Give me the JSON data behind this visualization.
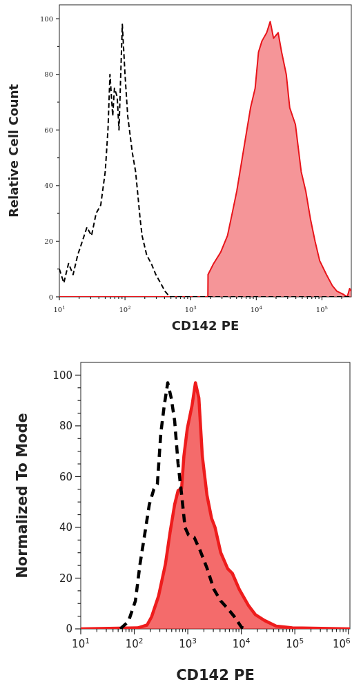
{
  "chart_data": [
    {
      "type": "area",
      "xlabel": "CD142 PE",
      "ylabel": "Relative Cell Count",
      "log": "x",
      "grid": false,
      "xlim": [
        10,
        280000
      ],
      "ylim": [
        0,
        105
      ],
      "xticks": [
        {
          "value": 10,
          "label": "10$^{1}$"
        },
        {
          "value": 20,
          "label": null
        },
        {
          "value": 30,
          "label": null
        },
        {
          "value": 40,
          "label": null
        },
        {
          "value": 50,
          "label": null
        },
        {
          "value": 60,
          "label": null
        },
        {
          "value": 70,
          "label": null
        },
        {
          "value": 80,
          "label": null
        },
        {
          "value": 90,
          "label": null
        },
        {
          "value": 100,
          "label": "10$^{2}$"
        },
        {
          "value": 200,
          "label": null
        },
        {
          "value": 300,
          "label": null
        },
        {
          "value": 400,
          "label": null
        },
        {
          "value": 500,
          "label": null
        },
        {
          "value": 600,
          "label": null
        },
        {
          "value": 700,
          "label": null
        },
        {
          "value": 800,
          "label": null
        },
        {
          "value": 900,
          "label": null
        },
        {
          "value": 1000,
          "label": "10$^{3}$"
        },
        {
          "value": 2000,
          "label": null
        },
        {
          "value": 3000,
          "label": null
        },
        {
          "value": 4000,
          "label": null
        },
        {
          "value": 5000,
          "label": null
        },
        {
          "value": 6000,
          "label": null
        },
        {
          "value": 7000,
          "label": null
        },
        {
          "value": 8000,
          "label": null
        },
        {
          "value": 9000,
          "label": null
        },
        {
          "value": 10000,
          "label": "10$^{4}$"
        },
        {
          "value": 20000,
          "label": null
        },
        {
          "value": 30000,
          "label": null
        },
        {
          "value": 40000,
          "label": null
        },
        {
          "value": 50000,
          "label": null
        },
        {
          "value": 60000,
          "label": null
        },
        {
          "value": 70000,
          "label": null
        },
        {
          "value": 80000,
          "label": null
        },
        {
          "value": 90000,
          "label": null
        },
        {
          "value": 100000,
          "label": "10$^{5}$"
        },
        {
          "value": 200000,
          "label": null
        }
      ],
      "yticks": [
        0,
        {
          "value": 10,
          "label": null
        },
        20,
        {
          "value": 30,
          "label": null
        },
        40,
        {
          "value": 50,
          "label": null
        },
        60,
        {
          "value": 70,
          "label": null
        },
        80,
        {
          "value": 90,
          "label": null
        },
        100
      ],
      "series": [
        {
          "color": "#e8141a",
          "line_style": "solid",
          "x": [
            10,
            1830,
            1840,
            2240,
            2860,
            3640,
            4290,
            5040,
            5920,
            6950,
            8170,
            9600,
            10800,
            12200,
            14400,
            16300,
            18300,
            21500,
            24300,
            28600,
            32300,
            39400,
            48300,
            56700,
            66800,
            78500,
            92300,
            117000,
            144000,
            169000,
            207000,
            243000,
            264000,
            280000
          ],
          "values": [
            0,
            0,
            8,
            12,
            16,
            22,
            30,
            38,
            48,
            58,
            68,
            75,
            88,
            92,
            95,
            99,
            93,
            95,
            88,
            80,
            68,
            62,
            45,
            38,
            28,
            20,
            13,
            8,
            4,
            2,
            1,
            0,
            3,
            2
          ]
        },
        {
          "type": "line",
          "color": "#000000",
          "line_style": "dashed",
          "x": [
            10,
            11.7,
            13.8,
            16.2,
            19,
            22.4,
            26.3,
            30.9,
            36.3,
            42.7,
            50,
            55,
            59,
            65,
            69,
            76,
            81,
            91,
            100,
            110,
            117,
            129,
            145,
            155,
            170,
            182,
            214,
            251,
            295,
            347,
            407,
            479,
            280000
          ],
          "values": [
            10,
            5,
            12,
            8,
            15,
            20,
            25,
            22,
            30,
            33,
            45,
            60,
            80,
            65,
            75,
            72,
            60,
            98,
            80,
            65,
            60,
            52,
            45,
            38,
            28,
            22,
            15,
            12,
            8,
            5,
            2,
            0,
            0
          ]
        }
      ]
    },
    {
      "type": "area",
      "xlabel": "CD142 PE",
      "ylabel": "Normalized To Mode",
      "log": "x",
      "grid": false,
      "xlim": [
        10,
        1070000
      ],
      "ylim": [
        0,
        105
      ],
      "xticks": [
        {
          "value": 10,
          "label": "10$^{1}$"
        },
        {
          "value": 20,
          "label": null
        },
        {
          "value": 30,
          "label": null
        },
        {
          "value": 40,
          "label": null
        },
        {
          "value": 50,
          "label": null
        },
        {
          "value": 60,
          "label": null
        },
        {
          "value": 70,
          "label": null
        },
        {
          "value": 80,
          "label": null
        },
        {
          "value": 90,
          "label": null
        },
        {
          "value": 100,
          "label": "10$^{2}$"
        },
        {
          "value": 200,
          "label": null
        },
        {
          "value": 300,
          "label": null
        },
        {
          "value": 400,
          "label": null
        },
        {
          "value": 500,
          "label": null
        },
        {
          "value": 600,
          "label": null
        },
        {
          "value": 700,
          "label": null
        },
        {
          "value": 800,
          "label": null
        },
        {
          "value": 900,
          "label": null
        },
        {
          "value": 1000,
          "label": "10$^{3}$"
        },
        {
          "value": 2000,
          "label": null
        },
        {
          "value": 3000,
          "label": null
        },
        {
          "value": 4000,
          "label": null
        },
        {
          "value": 5000,
          "label": null
        },
        {
          "value": 6000,
          "label": null
        },
        {
          "value": 7000,
          "label": null
        },
        {
          "value": 8000,
          "label": null
        },
        {
          "value": 9000,
          "label": null
        },
        {
          "value": 10000,
          "label": "10$^{4}$"
        },
        {
          "value": 20000,
          "label": null
        },
        {
          "value": 30000,
          "label": null
        },
        {
          "value": 40000,
          "label": null
        },
        {
          "value": 50000,
          "label": null
        },
        {
          "value": 60000,
          "label": null
        },
        {
          "value": 70000,
          "label": null
        },
        {
          "value": 80000,
          "label": null
        },
        {
          "value": 90000,
          "label": null
        },
        {
          "value": 100000,
          "label": "10$^{5}$"
        },
        {
          "value": 200000,
          "label": null
        },
        {
          "value": 300000,
          "label": null
        },
        {
          "value": 400000,
          "label": null
        },
        {
          "value": 500000,
          "label": null
        },
        {
          "value": 600000,
          "label": null
        },
        {
          "value": 700000,
          "label": null
        },
        {
          "value": 800000,
          "label": null
        },
        {
          "value": 900000,
          "label": null
        },
        {
          "value": 1000000,
          "label": "10$^{6}$"
        }
      ],
      "yticks": [
        0,
        {
          "value": 5,
          "label": null
        },
        {
          "value": 10,
          "label": null
        },
        {
          "value": 15,
          "label": null
        },
        20,
        {
          "value": 25,
          "label": null
        },
        {
          "value": 30,
          "label": null
        },
        {
          "value": 35,
          "label": null
        },
        40,
        {
          "value": 45,
          "label": null
        },
        {
          "value": 50,
          "label": null
        },
        {
          "value": 55,
          "label": null
        },
        60,
        {
          "value": 65,
          "label": null
        },
        {
          "value": 70,
          "label": null
        },
        {
          "value": 75,
          "label": null
        },
        80,
        {
          "value": 85,
          "label": null
        },
        {
          "value": 90,
          "label": null
        },
        {
          "value": 95,
          "label": null
        },
        100
      ],
      "series": [
        {
          "color": "#ee1c1c",
          "line_style": "solid",
          "x": [
            10,
            116,
            173,
            210,
            284,
            382,
            466,
            568,
            659,
            766,
            845,
            980,
            1200,
            1390,
            1610,
            1870,
            2280,
            2780,
            3230,
            4130,
            5570,
            6790,
            9140,
            13600,
            18300,
            27200,
            44800,
            89800,
            1070000
          ],
          "values": [
            0,
            0.4,
            1.5,
            4.7,
            12.9,
            25.5,
            38,
            49,
            54.5,
            55.4,
            68,
            79,
            88,
            97,
            91,
            68,
            52.7,
            43.6,
            40,
            30,
            23.7,
            21.9,
            15.6,
            9.2,
            5.6,
            3.3,
            1.1,
            0.4,
            0
          ]
        },
        {
          "type": "line",
          "color": "#000000",
          "line_style": "dashed",
          "x": [
            55,
            78,
            105,
            128,
            156,
            191,
            232,
            270,
            313,
            363,
            422,
            490,
            568,
            659,
            766,
            888,
            1030,
            1320,
            1690,
            2280,
            3070,
            4130,
            5570,
            7500,
            10100,
            12300
          ],
          "values": [
            0,
            3,
            11,
            25.5,
            37,
            49,
            55,
            57,
            77,
            88,
            97,
            91,
            82,
            65,
            53,
            40,
            37,
            36,
            31,
            24,
            15.6,
            11,
            8,
            4.7,
            0.6,
            0
          ]
        }
      ]
    }
  ]
}
